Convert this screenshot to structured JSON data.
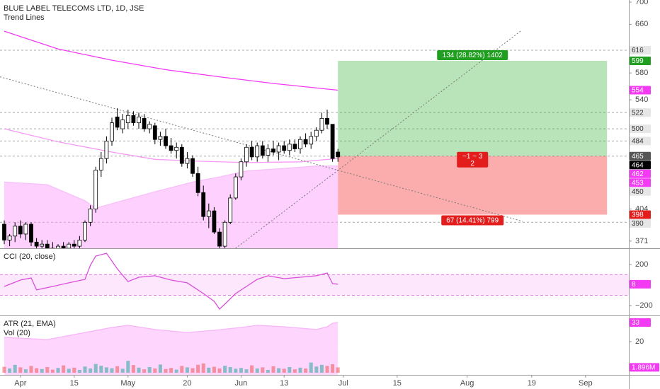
{
  "chart_data": [
    {
      "type": "candlestick",
      "title": "BLUE LABEL TELECOMS LTD, 1D, JSE",
      "subtitle": "Trend Lines",
      "log_scale": true,
      "ylim": [
        364,
        704
      ],
      "yticks": [
        371,
        404,
        540,
        580,
        660,
        700
      ],
      "xlim": [
        -0.79,
        116.05
      ],
      "xticks": [
        {
          "value": 3,
          "label": "Apr"
        },
        {
          "value": 13,
          "label": "15"
        },
        {
          "value": 23,
          "label": "May"
        },
        {
          "value": 34,
          "label": "20"
        },
        {
          "value": 44,
          "label": "Jun"
        },
        {
          "value": 52,
          "label": "13"
        },
        {
          "value": 63,
          "label": "Jul"
        },
        {
          "value": 73,
          "label": "15"
        },
        {
          "value": 86,
          "label": "Aug"
        },
        {
          "value": 98,
          "label": "19"
        },
        {
          "value": 108,
          "label": "Sep"
        }
      ],
      "up_color": "#ffffff",
      "down_color": "#000000",
      "open": [
        388,
        372,
        376,
        386,
        378,
        388,
        370,
        366,
        368,
        364,
        362,
        366,
        364,
        368,
        366,
        372,
        390,
        404,
        448,
        462,
        484,
        516,
        500,
        508,
        518,
        508,
        514,
        500,
        504,
        486,
        490,
        478,
        472,
        476,
        456,
        462,
        444,
        422,
        396,
        402,
        380,
        366,
        390,
        416,
        440,
        458,
        476,
        464,
        478,
        466,
        474,
        470,
        478,
        472,
        480,
        474,
        486,
        480,
        490,
        498,
        514,
        506,
        470
      ],
      "high": [
        392,
        378,
        390,
        392,
        390,
        390,
        374,
        372,
        372,
        370,
        368,
        370,
        370,
        372,
        376,
        392,
        408,
        452,
        470,
        490,
        515,
        528,
        520,
        526,
        524,
        522,
        520,
        510,
        508,
        496,
        500,
        488,
        482,
        480,
        470,
        466,
        452,
        430,
        410,
        406,
        384,
        392,
        420,
        444,
        462,
        480,
        484,
        482,
        484,
        480,
        484,
        482,
        484,
        486,
        486,
        490,
        494,
        496,
        502,
        522,
        526,
        506,
        474
      ],
      "low": [
        368,
        366,
        370,
        374,
        372,
        366,
        362,
        360,
        360,
        358,
        358,
        360,
        360,
        362,
        362,
        370,
        386,
        400,
        440,
        456,
        478,
        498,
        494,
        500,
        504,
        500,
        496,
        494,
        480,
        478,
        474,
        468,
        462,
        452,
        450,
        440,
        418,
        392,
        384,
        378,
        362,
        364,
        388,
        414,
        436,
        452,
        460,
        458,
        462,
        458,
        466,
        460,
        468,
        466,
        470,
        468,
        476,
        474,
        484,
        494,
        500,
        458,
        458
      ],
      "close": [
        372,
        376,
        386,
        378,
        388,
        370,
        366,
        368,
        364,
        362,
        366,
        364,
        368,
        366,
        372,
        390,
        404,
        448,
        462,
        484,
        508,
        502,
        512,
        518,
        508,
        516,
        500,
        506,
        486,
        490,
        478,
        472,
        476,
        456,
        462,
        444,
        422,
        396,
        402,
        380,
        366,
        390,
        416,
        440,
        458,
        476,
        464,
        478,
        466,
        474,
        470,
        478,
        472,
        480,
        474,
        486,
        480,
        490,
        498,
        514,
        506,
        462,
        464
      ],
      "series": [
        {
          "color": "#f23bf2",
          "x": [
            0,
            10,
            20,
            30,
            40,
            50,
            62
          ],
          "values": [
            648,
            618,
            600,
            585,
            574,
            564,
            554
          ]
        },
        {
          "color": "#f59af5",
          "x": [
            0,
            10,
            20,
            28,
            35,
            45,
            55,
            62
          ],
          "values": [
            500,
            483,
            470,
            461,
            459,
            457,
            458,
            462
          ]
        },
        {
          "color": "#f7bff7",
          "fill": "rgba(250,150,250,0.45)",
          "x": [
            0,
            8,
            15,
            17,
            22,
            28,
            35,
            40,
            45,
            52,
            58,
            62
          ],
          "values": [
            434,
            431,
            413,
            405,
            413,
            423,
            434,
            440,
            447,
            450,
            453,
            453
          ]
        }
      ],
      "trend_lines": [
        {
          "x": [
            -0.79,
            96.3
          ],
          "values": [
            574,
            391
          ]
        },
        {
          "x": [
            43,
            96.2
          ],
          "values": [
            364,
            650
          ]
        }
      ],
      "hlines": [
        616,
        522,
        500,
        484,
        465,
        390
      ],
      "position": {
        "x": [
          62,
          112
        ],
        "entry": 465,
        "target": 599,
        "stop": 398,
        "target_color": "rgba(60,180,60,0.36)",
        "stop_color": "rgba(245,60,60,0.42)",
        "target_label": "134 (28.82%) 1402",
        "stop_label": "67 (14.41%) 799",
        "ratio_label": [
          "−1 ~ 3",
          "2"
        ]
      },
      "badges": [
        {
          "value": 616,
          "bg": "#e6e6e6",
          "fg": "#333333"
        },
        {
          "value": 599,
          "bg": "#1f9e1f",
          "fg": "#ffffff"
        },
        {
          "value": 554,
          "bg": "#f23bf2",
          "fg": "#ffffff"
        },
        {
          "value": 522,
          "bg": "#e6e6e6",
          "fg": "#333333"
        },
        {
          "value": 500,
          "bg": "#e6e6e6",
          "fg": "#333333"
        },
        {
          "value": 484,
          "bg": "#e6e6e6",
          "fg": "#333333"
        },
        {
          "value": 465,
          "bg": "#555555",
          "fg": "#ffffff"
        },
        {
          "value": 464,
          "bg": "#000000",
          "fg": "#ffffff"
        },
        {
          "value": 462,
          "bg": "#f23bf2",
          "fg": "#ffffff"
        },
        {
          "value": 453,
          "bg": "#f23bf2",
          "fg": "#ffffff"
        },
        {
          "value": 450,
          "bg": "#e6e6e6",
          "fg": "#333333"
        },
        {
          "value": 398,
          "bg": "#e31c1c",
          "fg": "#ffffff"
        },
        {
          "value": 390,
          "bg": "#e6e6e6",
          "fg": "#333333"
        }
      ]
    },
    {
      "type": "line",
      "title": "CCI (20, close)",
      "ylim": [
        -297,
        352
      ],
      "yticks": [
        200,
        {
          "value": -200,
          "label": "−200"
        }
      ],
      "bands": [
        -100,
        100
      ],
      "band_color": "rgba(240,60,240,0.12)",
      "color": "#d94fd9",
      "x": [
        0,
        3,
        5,
        6,
        9,
        12,
        15,
        16,
        17,
        19,
        21,
        23,
        25,
        28,
        31,
        34,
        37,
        39,
        40,
        41,
        43,
        45,
        47,
        49,
        52,
        55,
        58,
        60,
        61,
        62
      ],
      "values": [
        -14,
        48,
        69,
        -48,
        -14,
        21,
        55,
        193,
        283,
        310,
        159,
        34,
        76,
        90,
        48,
        21,
        -83,
        -159,
        -235,
        -186,
        -83,
        -14,
        55,
        90,
        62,
        76,
        90,
        117,
        14,
        8
      ],
      "badges": [
        {
          "value": 8,
          "bg": "#f23bf2",
          "fg": "#ffffff"
        }
      ]
    },
    {
      "type": "area",
      "ylim": [
        -2.6,
        37.3
      ],
      "yticks": [
        20
      ],
      "y2lim": [
        -750000,
        20000000
      ],
      "series": [
        {
          "name": "ATR (21, EMA)",
          "color": "#f7b5f7",
          "fill": "rgba(250,150,250,0.4)",
          "x": [
            0,
            8,
            15,
            20,
            23,
            28,
            34,
            39,
            44,
            47,
            52,
            58,
            60,
            61,
            62
          ],
          "values": [
            22.9,
            21.4,
            26.2,
            29.6,
            31.1,
            28.2,
            26.2,
            27.7,
            29.6,
            31.1,
            30.1,
            28.2,
            30.1,
            32.5,
            33
          ]
        },
        {
          "name": "Vol (20)",
          "type": "bar",
          "axis": "y2",
          "up_color": "rgba(38,166,154,0.55)",
          "down_color": "rgba(239,83,80,0.55)",
          "values": [
            2100000,
            1500000,
            2800000,
            1900000,
            1200000,
            2400000,
            1600000,
            1300000,
            2000000,
            1100000,
            1700000,
            2600000,
            1400000,
            1800000,
            1000000,
            2200000,
            1500000,
            3100000,
            2500000,
            1900000,
            1600000,
            2300000,
            1400000,
            4200000,
            2700000,
            1800000,
            1200000,
            2000000,
            1500000,
            2900000,
            1300000,
            1700000,
            1100000,
            2400000,
            1900000,
            1600000,
            2800000,
            3300000,
            1800000,
            2100000,
            1500000,
            2500000,
            2000000,
            1400000,
            1700000,
            1200000,
            2600000,
            1500000,
            1900000,
            1000000,
            2300000,
            1600000,
            1400000,
            2000000,
            1200000,
            1800000,
            1500000,
            3600000,
            2200000,
            2800000,
            2400000,
            3000000,
            1896000
          ]
        }
      ],
      "badges": [
        {
          "value": 33,
          "bg": "#f23bf2",
          "fg": "#ffffff"
        },
        {
          "value": 1896000,
          "label": "1.896M",
          "axis": "y2",
          "bg": "#f23bf2",
          "fg": "#ffffff"
        }
      ]
    }
  ]
}
